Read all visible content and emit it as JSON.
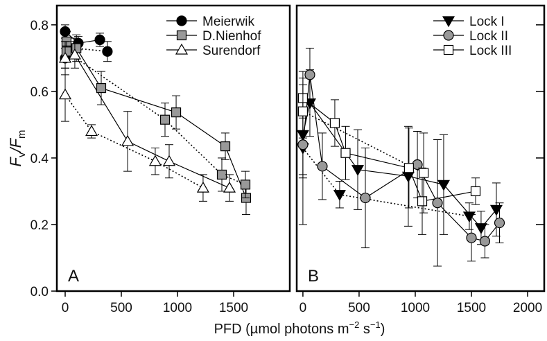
{
  "chart_data": [
    {
      "type": "scatter-line",
      "panel_label": "A",
      "ylabel": [
        "F",
        "v",
        "/F",
        "m"
      ],
      "xlabel": [
        "PFD (µmol photons m",
        "−2",
        " s",
        "−1",
        ")"
      ],
      "xlim": [
        -74,
        2000
      ],
      "xticks": [
        0,
        500,
        1000,
        1500
      ],
      "ylim": [
        0,
        0.858
      ],
      "yticks": [
        {
          "value": 0,
          "label": "0.0"
        },
        0.2,
        0.4,
        0.6,
        0.8
      ],
      "ytick_labels": true,
      "legend": "upper right",
      "series": [
        {
          "name": "Meierwik",
          "color": "#000000",
          "fill": "#000000",
          "marker": "circle",
          "line": "solid",
          "x": [
            0,
            117,
            309
          ],
          "values": [
            0.78,
            0.745,
            0.755
          ],
          "errors": [
            0.02,
            0.02,
            0.02
          ]
        },
        {
          "color": "#000000",
          "fill": "#000000",
          "marker": "circle",
          "line": "dotted",
          "x": [
            0,
            86,
            376
          ],
          "values": [
            0.7,
            0.73,
            0.72
          ],
          "errors": [
            0.03,
            0.03,
            0.03
          ]
        },
        {
          "name": "D.Nienhof",
          "color": "#000000",
          "fill": "#999999",
          "marker": "square",
          "line": "solid",
          "x": [
            12,
            100,
            321,
            988,
            1426,
            1611
          ],
          "values": [
            0.75,
            0.73,
            0.61,
            0.537,
            0.435,
            0.28
          ],
          "errors": [
            0.03,
            0.04,
            0.05,
            0.05,
            0.04,
            0.05
          ]
        },
        {
          "color": "#000000",
          "fill": "#999999",
          "marker": "square",
          "line": "dotted",
          "x": [
            12,
            889,
            1395,
            1605
          ],
          "values": [
            0.72,
            0.515,
            0.35,
            0.32
          ],
          "errors": [
            0.03,
            0.05,
            0.05,
            0.04
          ]
        },
        {
          "name": "Surendorf",
          "color": "#000000",
          "fill": "#ffffff",
          "marker": "triangle",
          "line": "solid",
          "x": [
            0,
            86,
            556,
            926,
            1463
          ],
          "values": [
            0.7,
            0.71,
            0.45,
            0.39,
            0.31
          ],
          "errors": [
            0.05,
            0.04,
            0.09,
            0.05,
            0.04
          ]
        },
        {
          "color": "#000000",
          "fill": "#ffffff",
          "marker": "triangle",
          "line": "dotted",
          "x": [
            0,
            235,
            802,
            1228
          ],
          "values": [
            0.59,
            0.48,
            0.39,
            0.31
          ],
          "errors": [
            0.08,
            0.02,
            0.04,
            0.04
          ]
        }
      ]
    },
    {
      "type": "scatter-line",
      "panel_label": "B",
      "xlim": [
        -55,
        2148
      ],
      "xticks": [
        0,
        500,
        1000,
        1500,
        2000
      ],
      "ylim": [
        0,
        0.858
      ],
      "yticks": [
        0,
        0.2,
        0.4,
        0.6,
        0.8
      ],
      "ytick_labels": false,
      "legend": "upper right",
      "series": [
        {
          "name": "Lock I",
          "color": "#000000",
          "fill": "#000000",
          "marker": "triangle-down",
          "line": "solid",
          "x": [
            0,
            62,
            488,
            938,
            1253,
            1586,
            1722
          ],
          "values": [
            0.47,
            0.565,
            0.365,
            0.345,
            0.32,
            0.19,
            0.245
          ],
          "errors": [
            0.12,
            0.1,
            0.12,
            0.15,
            0.15,
            0.05,
            0.08
          ]
        },
        {
          "color": "#000000",
          "fill": "#000000",
          "marker": "triangle-down",
          "line": "dotted",
          "x": [
            0,
            327,
            1481
          ],
          "values": [
            0.43,
            0.29,
            0.225
          ],
          "errors": [
            0.23,
            0.04,
            0.04
          ]
        },
        {
          "name": "Lock II",
          "color": "#000000",
          "fill": "#999999",
          "marker": "circle",
          "line": "solid",
          "x": [
            0,
            62,
            173,
            556,
            1019,
            1198,
            1500,
            1620,
            1750
          ],
          "values": [
            0.44,
            0.65,
            0.375,
            0.28,
            0.38,
            0.265,
            0.16,
            0.15,
            0.205
          ],
          "errors": [
            0.1,
            0.08,
            0.1,
            0.15,
            0.1,
            0.19,
            0.07,
            0.05,
            0.06
          ]
        },
        {
          "name": "Lock III",
          "color": "#000000",
          "fill": "#ffffff",
          "marker": "square",
          "line": "solid",
          "x": [
            0,
            284,
            380,
            944,
            1062,
            1537
          ],
          "values": [
            0.58,
            0.505,
            0.415,
            0.37,
            0.27,
            0.3
          ],
          "errors": [
            0.06,
            0.07,
            0.08,
            0.12,
            0.1,
            0.04
          ]
        },
        {
          "color": "#000000",
          "fill": "#ffffff",
          "marker": "square",
          "line": "dotted",
          "x": [
            0,
            1075
          ],
          "values": [
            0.54,
            0.355
          ],
          "errors": [
            0.08,
            0.12
          ]
        }
      ]
    }
  ]
}
